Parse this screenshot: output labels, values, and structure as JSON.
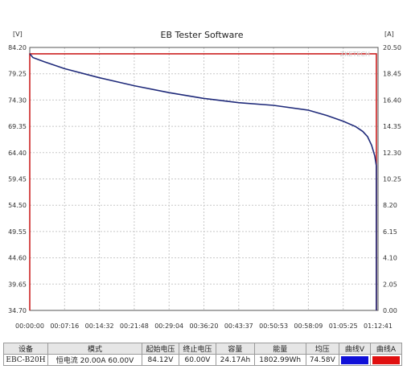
{
  "chart_data": {
    "type": "line",
    "title": "EB Tester Software",
    "y_unit": "[V]",
    "y2_unit": "[A]",
    "watermark": "ZKETECH",
    "ylim": [
      34.7,
      84.2
    ],
    "y2lim": [
      0.0,
      20.5
    ],
    "y_ticks": [
      "84.20",
      "79.25",
      "74.30",
      "69.35",
      "64.40",
      "59.45",
      "54.50",
      "49.55",
      "44.60",
      "39.65",
      "34.70"
    ],
    "y2_ticks": [
      "20.50",
      "18.45",
      "16.40",
      "14.35",
      "12.30",
      "10.25",
      "8.20",
      "6.15",
      "4.10",
      "2.05",
      "0.00"
    ],
    "x_ticks": [
      "00:00:00",
      "00:07:16",
      "00:14:32",
      "00:21:48",
      "00:29:04",
      "00:36:20",
      "00:43:37",
      "00:50:53",
      "00:58:09",
      "01:05:25",
      "01:12:41"
    ],
    "grid": true,
    "series": [
      {
        "name": "曲线V",
        "color": "#1f2a7a",
        "x": [
          "00:00:00",
          "00:00:40",
          "00:03:00",
          "00:07:16",
          "00:14:32",
          "00:21:48",
          "00:29:04",
          "00:36:20",
          "00:43:37",
          "00:50:53",
          "00:58:09",
          "01:02:00",
          "01:05:25",
          "01:08:00",
          "01:09:30",
          "01:10:30",
          "01:11:20",
          "01:12:00",
          "01:12:20"
        ],
        "values": [
          83.0,
          82.3,
          81.5,
          80.2,
          78.5,
          77.0,
          75.7,
          74.6,
          73.8,
          73.3,
          72.4,
          71.4,
          70.3,
          69.3,
          68.4,
          67.4,
          65.8,
          63.8,
          61.9
        ]
      },
      {
        "name": "曲线A",
        "color": "#cc2222",
        "x": [
          "00:00:00",
          "01:12:20"
        ],
        "values": [
          20.0,
          20.0
        ]
      }
    ]
  },
  "table": {
    "headers": [
      "设备",
      "模式",
      "起始电压",
      "终止电压",
      "容量",
      "能量",
      "均压",
      "曲线V",
      "曲线A"
    ],
    "row": {
      "device": "EBC-B20H",
      "mode": "恒电流  20.00A  60.00V",
      "start_voltage": "84.12V",
      "end_voltage": "60.00V",
      "capacity": "24.17Ah",
      "energy": "1802.99Wh",
      "avg_voltage": "74.58V",
      "curve_v_color": "#1010d8",
      "curve_a_color": "#e01010"
    }
  }
}
